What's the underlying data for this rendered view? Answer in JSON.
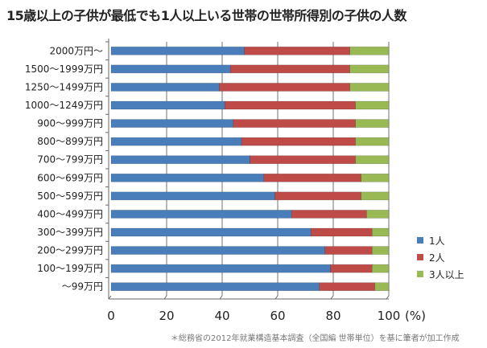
{
  "chart_data": {
    "type": "bar",
    "orientation": "horizontal",
    "stacked": true,
    "title": "15歳以上の子供が最低でも1人以上いる世帯の世帯所得別の子供の人数",
    "categories": [
      "2000万円〜",
      "1500〜1999万円",
      "1250〜1499万円",
      "1000〜1249万円",
      "900〜999万円",
      "800〜899万円",
      "700〜799万円",
      "600〜699万円",
      "500〜599万円",
      "400〜499万円",
      "300〜399万円",
      "200〜299万円",
      "100〜199万円",
      "〜99万円"
    ],
    "series": [
      {
        "name": "1人",
        "color": "#4a7ebb",
        "values": [
          48,
          43,
          39,
          41,
          44,
          47,
          50,
          55,
          59,
          65,
          72,
          77,
          79,
          75
        ]
      },
      {
        "name": "2人",
        "color": "#be4b48",
        "values": [
          38,
          43,
          47,
          47,
          44,
          41,
          38,
          35,
          31,
          27,
          22,
          17,
          15,
          20
        ]
      },
      {
        "name": "3人以上",
        "color": "#98b954",
        "values": [
          14,
          14,
          14,
          12,
          12,
          12,
          12,
          10,
          10,
          8,
          6,
          6,
          6,
          5
        ]
      }
    ],
    "xlim": [
      0,
      100
    ],
    "xticks": [
      "0",
      "20",
      "40",
      "60",
      "80",
      "100"
    ],
    "xunit": "(%)",
    "grid": true,
    "legend": "right"
  },
  "footnote": "＊総務省の2012年就業構造基本調査（全国編 世帯単位）を基に筆者が加工作成"
}
